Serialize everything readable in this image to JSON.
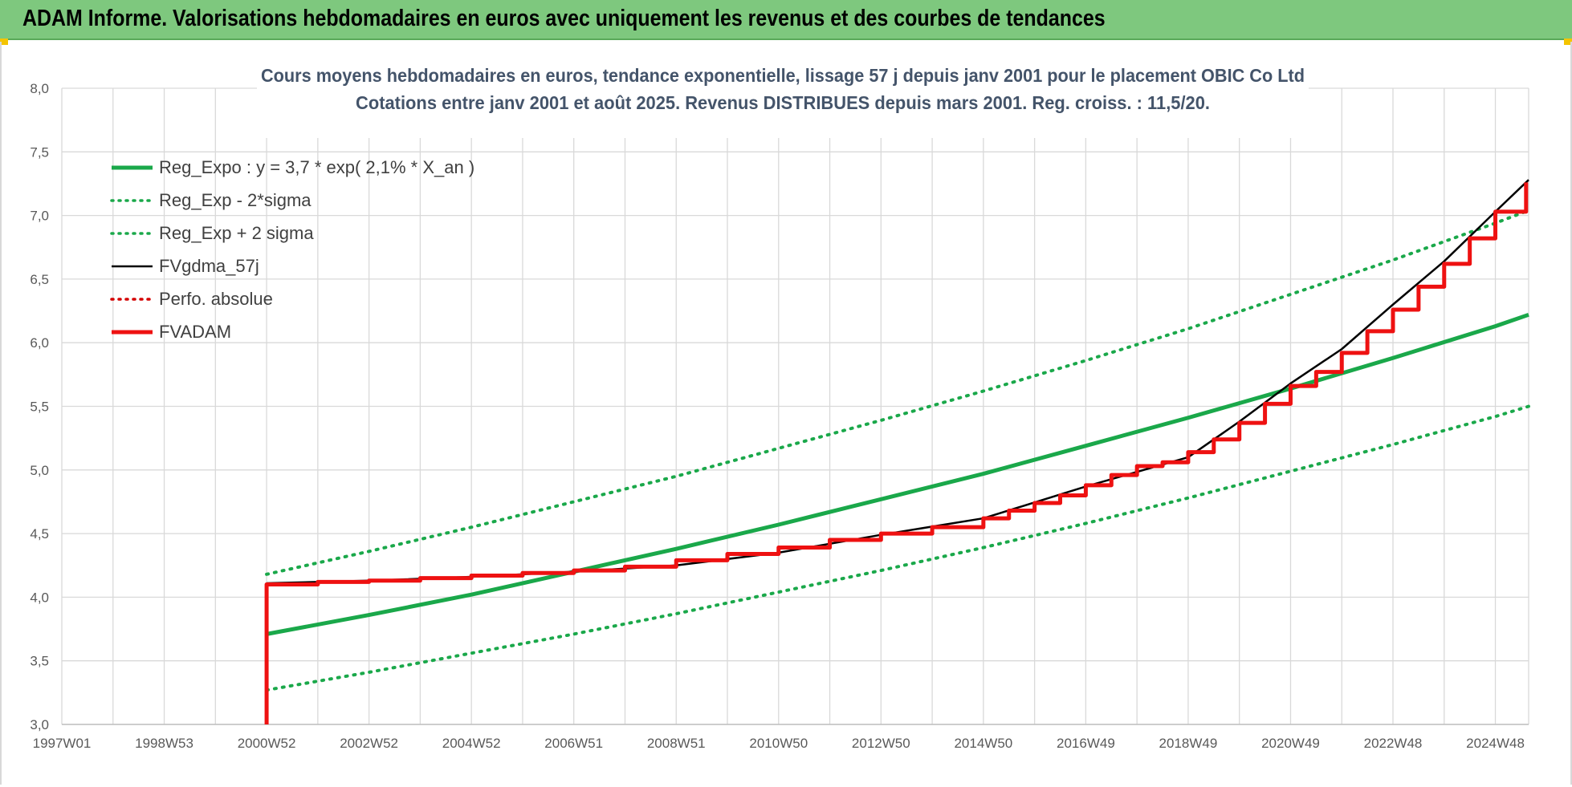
{
  "banner": {
    "title": "ADAM Informe. Valorisations hebdomadaires en euros avec uniquement les revenus et des courbes de tendances"
  },
  "colors": {
    "banner": "#7ec87e",
    "reg_expo": "#1aa84a",
    "fvgdma": "#000000",
    "fvadam": "#ee1111",
    "perfo": "#d40000"
  },
  "chart_data": {
    "type": "line",
    "title": "Cours moyens hebdomadaires en euros, tendance exponentielle, lissage 57 j depuis janv 2001  pour le placement OBIC Co Ltd",
    "subtitle": "Cotations entre janv 2001 et août 2025.  Revenus DISTRIBUES depuis mars 2001.  Reg. croiss. : 11,5/20.",
    "xlabel": "",
    "ylabel": "",
    "ylim": [
      3.0,
      8.0
    ],
    "xlim": [
      1997.0,
      2025.65
    ],
    "grid": true,
    "legend_position": "top-left",
    "y_ticks": [
      "3,0",
      "3,5",
      "4,0",
      "4,5",
      "5,0",
      "5,5",
      "6,0",
      "6,5",
      "7,0",
      "7,5",
      "8,0"
    ],
    "x_ticks": [
      {
        "label": "1997W01",
        "x": 1997.0
      },
      {
        "label": "1998W53",
        "x": 1999.0
      },
      {
        "label": "2000W52",
        "x": 2001.0
      },
      {
        "label": "2002W52",
        "x": 2003.0
      },
      {
        "label": "2004W52",
        "x": 2005.0
      },
      {
        "label": "2006W51",
        "x": 2007.0
      },
      {
        "label": "2008W51",
        "x": 2009.0
      },
      {
        "label": "2010W50",
        "x": 2011.0
      },
      {
        "label": "2012W50",
        "x": 2013.0
      },
      {
        "label": "2014W50",
        "x": 2015.0
      },
      {
        "label": "2016W49",
        "x": 2017.0
      },
      {
        "label": "2018W49",
        "x": 2019.0
      },
      {
        "label": "2020W49",
        "x": 2021.0
      },
      {
        "label": "2022W48",
        "x": 2023.0
      },
      {
        "label": "2024W48",
        "x": 2025.0
      }
    ],
    "series": [
      {
        "name": "Reg_Expo : y = 3,7 * exp( 2,1% *  X_an )",
        "style": "solid",
        "color": "#1aa84a",
        "width": 5,
        "x": [
          2001.0,
          2003.0,
          2005.0,
          2007.0,
          2009.0,
          2011.0,
          2013.0,
          2015.0,
          2017.0,
          2019.0,
          2021.0,
          2023.0,
          2025.0,
          2025.65
        ],
        "y": [
          3.71,
          3.86,
          4.02,
          4.2,
          4.38,
          4.57,
          4.77,
          4.97,
          5.19,
          5.41,
          5.64,
          5.88,
          6.13,
          6.22
        ]
      },
      {
        "name": "Reg_Exp - 2*sigma",
        "style": "dotted",
        "color": "#1aa84a",
        "width": 4,
        "x": [
          2001.0,
          2003.0,
          2005.0,
          2007.0,
          2009.0,
          2011.0,
          2013.0,
          2015.0,
          2017.0,
          2019.0,
          2021.0,
          2023.0,
          2025.0,
          2025.65
        ],
        "y": [
          3.27,
          3.41,
          3.56,
          3.71,
          3.87,
          4.04,
          4.21,
          4.39,
          4.58,
          4.78,
          4.99,
          5.2,
          5.42,
          5.5
        ]
      },
      {
        "name": "Reg_Exp + 2 sigma",
        "style": "dotted",
        "color": "#1aa84a",
        "width": 4,
        "x": [
          2001.0,
          2003.0,
          2005.0,
          2007.0,
          2009.0,
          2011.0,
          2013.0,
          2015.0,
          2017.0,
          2019.0,
          2021.0,
          2023.0,
          2025.0,
          2025.65
        ],
        "y": [
          4.18,
          4.36,
          4.55,
          4.75,
          4.95,
          5.17,
          5.39,
          5.62,
          5.86,
          6.11,
          6.38,
          6.65,
          6.94,
          7.04
        ]
      },
      {
        "name": "FVgdma_57j",
        "style": "solid",
        "color": "#000000",
        "width": 2.5,
        "x": [
          2001.0,
          2003.0,
          2005.0,
          2007.0,
          2009.0,
          2011.0,
          2013.0,
          2015.0,
          2017.0,
          2019.0,
          2020.0,
          2021.0,
          2022.0,
          2023.0,
          2024.0,
          2025.0,
          2025.65
        ],
        "y": [
          4.11,
          4.13,
          4.16,
          4.2,
          4.25,
          4.35,
          4.49,
          4.62,
          4.87,
          5.1,
          5.38,
          5.68,
          5.95,
          6.3,
          6.64,
          7.03,
          7.28
        ]
      },
      {
        "name": "Perfo. absolue",
        "style": "dotted",
        "color": "#d40000",
        "width": 3,
        "x": [],
        "y": []
      },
      {
        "name": "FVADAM",
        "style": "step",
        "color": "#ee1111",
        "width": 5,
        "x": [
          2001.0,
          2001.0,
          2002.0,
          2003.0,
          2004.0,
          2005.0,
          2006.0,
          2007.0,
          2008.0,
          2009.0,
          2010.0,
          2011.0,
          2012.0,
          2013.0,
          2014.0,
          2015.0,
          2015.5,
          2016.0,
          2016.5,
          2017.0,
          2017.5,
          2018.0,
          2018.5,
          2019.0,
          2019.5,
          2020.0,
          2020.5,
          2021.0,
          2021.5,
          2022.0,
          2022.5,
          2023.0,
          2023.5,
          2024.0,
          2024.5,
          2025.0,
          2025.6
        ],
        "y": [
          3.0,
          4.1,
          4.12,
          4.13,
          4.15,
          4.17,
          4.19,
          4.21,
          4.24,
          4.29,
          4.34,
          4.39,
          4.45,
          4.5,
          4.55,
          4.62,
          4.68,
          4.74,
          4.8,
          4.88,
          4.96,
          5.03,
          5.06,
          5.14,
          5.24,
          5.37,
          5.52,
          5.66,
          5.77,
          5.92,
          6.09,
          6.26,
          6.44,
          6.62,
          6.82,
          7.03,
          7.26
        ]
      }
    ]
  }
}
